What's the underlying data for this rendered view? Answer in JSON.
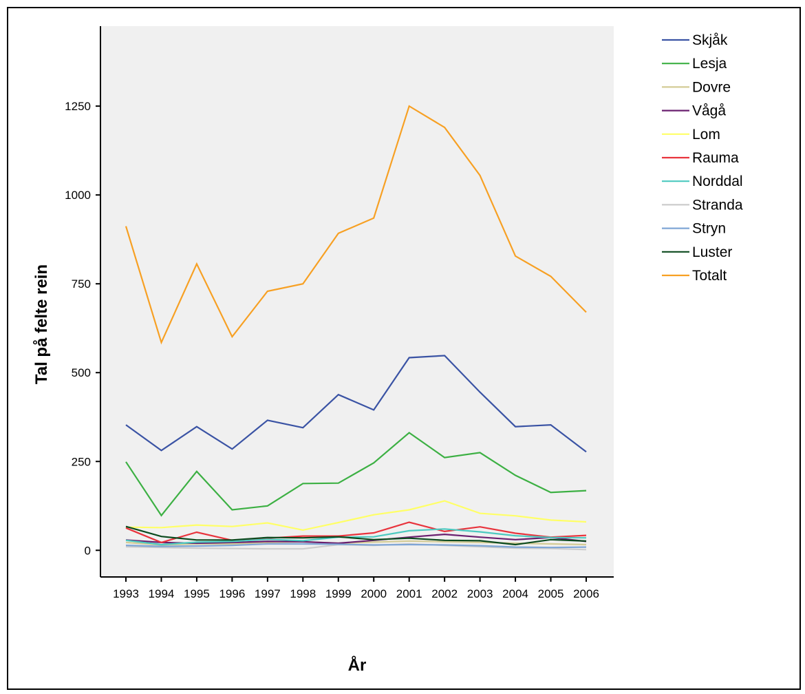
{
  "chart_data": {
    "type": "line",
    "title": "",
    "xlabel": "År",
    "ylabel": "Tal på felte rein",
    "categories": [
      "1993",
      "1994",
      "1995",
      "1996",
      "1997",
      "1998",
      "1999",
      "2000",
      "2001",
      "2002",
      "2003",
      "2004",
      "2005",
      "2006"
    ],
    "yticks": [
      0,
      250,
      500,
      750,
      1000,
      1250
    ],
    "ylim": [
      -75,
      1475
    ],
    "grid": false,
    "legend_position": "right",
    "background": "#f0f0f0",
    "series": [
      {
        "name": "Skjåk",
        "color": "#3a53a4",
        "values": [
          353,
          281,
          348,
          285,
          366,
          345,
          438,
          395,
          542,
          548,
          445,
          348,
          353,
          277
        ]
      },
      {
        "name": "Lesja",
        "color": "#3cb043",
        "values": [
          249,
          98,
          222,
          114,
          125,
          188,
          189,
          246,
          331,
          261,
          275,
          211,
          163,
          168
        ]
      },
      {
        "name": "Dovre",
        "color": "#d4cc96",
        "values": [
          22,
          15,
          18,
          18,
          22,
          24,
          20,
          23,
          26,
          24,
          22,
          20,
          18,
          16
        ]
      },
      {
        "name": "Vågå",
        "color": "#6a1f6f",
        "values": [
          29,
          22,
          20,
          22,
          25,
          24,
          20,
          28,
          37,
          45,
          37,
          30,
          36,
          25
        ]
      },
      {
        "name": "Lom",
        "color": "#ffff66",
        "values": [
          65,
          64,
          71,
          67,
          77,
          57,
          78,
          100,
          114,
          139,
          104,
          97,
          85,
          80
        ]
      },
      {
        "name": "Rauma",
        "color": "#e8333c",
        "values": [
          63,
          22,
          51,
          28,
          34,
          40,
          40,
          49,
          79,
          53,
          66,
          48,
          37,
          42
        ]
      },
      {
        "name": "Norddal",
        "color": "#4cc9c0",
        "values": [
          28,
          16,
          23,
          25,
          31,
          27,
          37,
          38,
          55,
          60,
          52,
          41,
          36,
          35
        ]
      },
      {
        "name": "Stranda",
        "color": "#cccccc",
        "values": [
          10,
          8,
          6,
          5,
          4,
          4,
          16,
          14,
          18,
          14,
          10,
          6,
          5,
          2
        ]
      },
      {
        "name": "Stryn",
        "color": "#7fa6d6",
        "values": [
          14,
          11,
          12,
          14,
          18,
          18,
          17,
          15,
          16,
          15,
          13,
          9,
          8,
          9
        ]
      },
      {
        "name": "Luster",
        "color": "#0b4a1e",
        "values": [
          67,
          39,
          29,
          29,
          36,
          35,
          38,
          30,
          34,
          28,
          27,
          16,
          30,
          26
        ]
      },
      {
        "name": "Totalt",
        "color": "#f7a023",
        "values": [
          912,
          585,
          806,
          601,
          729,
          750,
          892,
          935,
          1250,
          1190,
          1055,
          828,
          771,
          670
        ]
      }
    ]
  }
}
